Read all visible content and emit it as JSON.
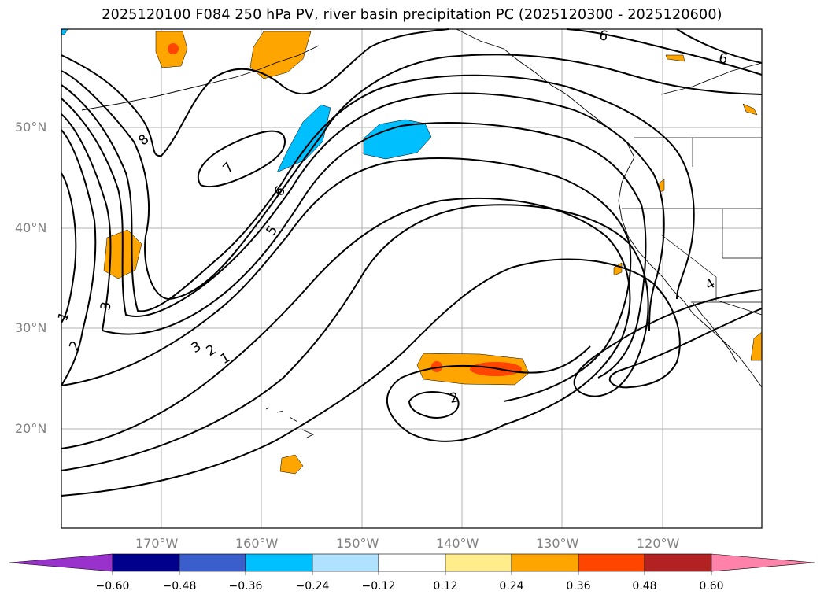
{
  "title": "2025120100 F084 250 hPa PV, river basin precipitation PC (2025120300 - 2025120600)",
  "map": {
    "lat_labels": [
      "50°N",
      "40°N",
      "30°N",
      "20°N"
    ],
    "lon_labels": [
      "170°W",
      "160°W",
      "150°W",
      "140°W",
      "130°W",
      "120°W"
    ],
    "contour_labels": [
      "8",
      "7",
      "6",
      "5",
      "3",
      "2",
      "1",
      "3",
      "2",
      "1",
      "2",
      "4",
      "6",
      "6"
    ]
  },
  "colorbar": {
    "tick_labels": [
      "−0.60",
      "−0.48",
      "−0.36",
      "−0.24",
      "−0.12",
      "0.12",
      "0.24",
      "0.36",
      "0.48",
      "0.60"
    ],
    "colors": [
      "#9932cc",
      "#00008b",
      "#3a5fcd",
      "#00bfff",
      "#b0e2ff",
      "#ffffff",
      "#ffec8b",
      "#ffa500",
      "#ff4500",
      "#b22222",
      "#ff82ab"
    ]
  },
  "fill_colors": {
    "negative": "#00bfff",
    "positive_low": "#ffa500",
    "positive_mid": "#ff4500"
  }
}
